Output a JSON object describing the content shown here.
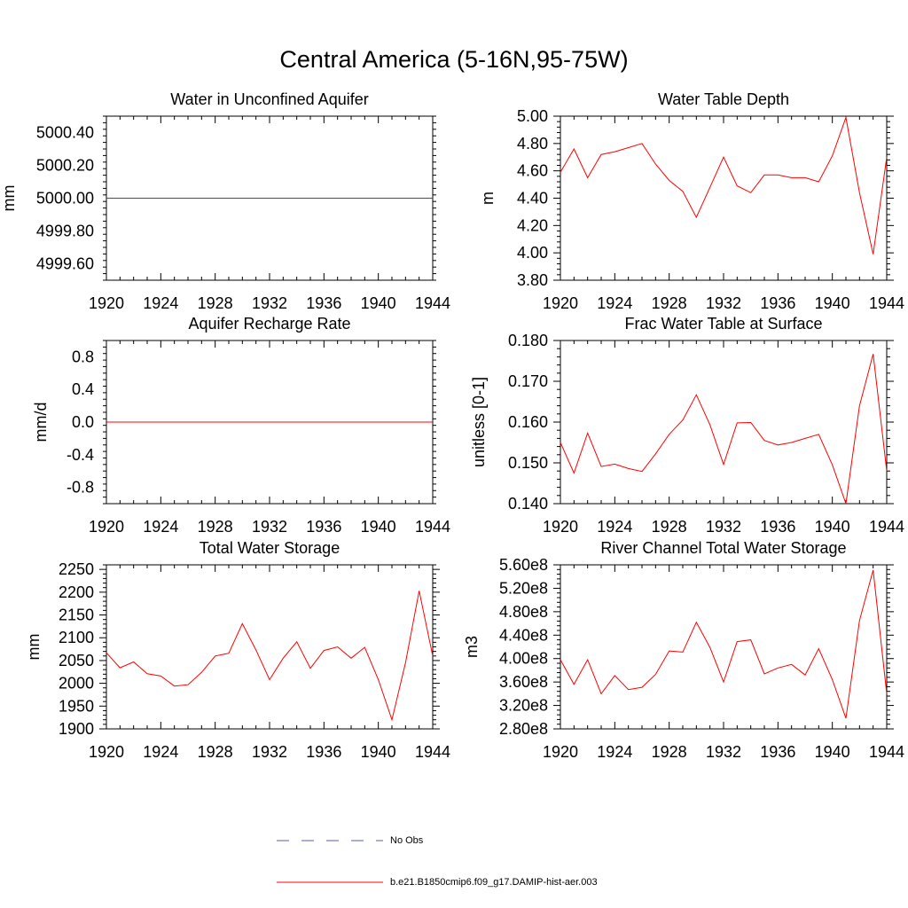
{
  "title": "Central America (5-16N,95-75W)",
  "legend": [
    {
      "label": "No Obs",
      "color": "#5b5bb5",
      "style": "dashed"
    },
    {
      "label": "b.e21.B1850cmip6.f09_g17.DAMIP-hist-aer.003",
      "color": "#ff0000",
      "style": "solid"
    }
  ],
  "chart_data": [
    {
      "type": "line",
      "title": "Water in Unconfined Aquifer",
      "ylabel": "mm",
      "xlim": [
        1920,
        1944
      ],
      "ylim": [
        4999.5,
        5000.5
      ],
      "xticks": [
        1920,
        1924,
        1928,
        1932,
        1936,
        1940,
        1944
      ],
      "yticks": [
        4999.6,
        4999.8,
        5000.0,
        5000.2,
        5000.4
      ],
      "ytick_labels": [
        "4999.60",
        "4999.80",
        "5000.00",
        "5000.20",
        "5000.40"
      ],
      "x": [
        1920,
        1944
      ],
      "values": [
        5000.0,
        5000.0
      ]
    },
    {
      "type": "line",
      "title": "Water Table Depth",
      "ylabel": "m",
      "xlim": [
        1920,
        1944
      ],
      "ylim": [
        3.8,
        5.0
      ],
      "xticks": [
        1920,
        1924,
        1928,
        1932,
        1936,
        1940,
        1944
      ],
      "yticks": [
        3.8,
        4.0,
        4.2,
        4.4,
        4.6,
        4.8,
        5.0
      ],
      "ytick_labels": [
        "3.80",
        "4.00",
        "4.20",
        "4.40",
        "4.60",
        "4.80",
        "5.00"
      ],
      "x": [
        1920,
        1921,
        1922,
        1923,
        1924,
        1925,
        1926,
        1927,
        1928,
        1929,
        1930,
        1931,
        1932,
        1933,
        1934,
        1935,
        1936,
        1937,
        1938,
        1939,
        1940,
        1941,
        1942,
        1943,
        1944
      ],
      "values": [
        4.59,
        4.76,
        4.55,
        4.72,
        4.74,
        4.77,
        4.8,
        4.65,
        4.53,
        4.45,
        4.26,
        4.48,
        4.7,
        4.49,
        4.44,
        4.57,
        4.57,
        4.55,
        4.55,
        4.52,
        4.71,
        4.99,
        4.44,
        3.99,
        4.7
      ]
    },
    {
      "type": "line",
      "title": "Aquifer Recharge Rate",
      "ylabel": "mm/d",
      "xlim": [
        1920,
        1944
      ],
      "ylim": [
        -1.0,
        1.0
      ],
      "xticks": [
        1920,
        1924,
        1928,
        1932,
        1936,
        1940,
        1944
      ],
      "yticks": [
        -0.8,
        -0.4,
        0.0,
        0.4,
        0.8
      ],
      "ytick_labels": [
        "-0.8",
        "-0.4",
        "0.0",
        "0.4",
        "0.8"
      ],
      "x": [
        1920,
        1944
      ],
      "values": [
        0.0,
        0.0
      ]
    },
    {
      "type": "line",
      "title": "Frac Water Table at Surface",
      "ylabel": "unitless [0-1]",
      "xlim": [
        1920,
        1944
      ],
      "ylim": [
        0.14,
        0.18
      ],
      "xticks": [
        1920,
        1924,
        1928,
        1932,
        1936,
        1940,
        1944
      ],
      "yticks": [
        0.14,
        0.15,
        0.16,
        0.17,
        0.18
      ],
      "ytick_labels": [
        "0.140",
        "0.150",
        "0.160",
        "0.170",
        "0.180"
      ],
      "x": [
        1920,
        1921,
        1922,
        1923,
        1924,
        1925,
        1926,
        1927,
        1928,
        1929,
        1930,
        1931,
        1932,
        1933,
        1934,
        1935,
        1936,
        1937,
        1938,
        1939,
        1940,
        1941,
        1942,
        1943,
        1944
      ],
      "values": [
        0.155,
        0.1475,
        0.1573,
        0.1491,
        0.1497,
        0.1486,
        0.1479,
        0.1522,
        0.157,
        0.1605,
        0.1667,
        0.1593,
        0.1496,
        0.1598,
        0.1599,
        0.1555,
        0.1544,
        0.155,
        0.156,
        0.157,
        0.1495,
        0.14,
        0.164,
        0.1767,
        0.148
      ]
    },
    {
      "type": "line",
      "title": "Total Water Storage",
      "ylabel": "mm",
      "xlim": [
        1920,
        1944
      ],
      "ylim": [
        1900,
        2260
      ],
      "xticks": [
        1920,
        1924,
        1928,
        1932,
        1936,
        1940,
        1944
      ],
      "yticks": [
        1900,
        1950,
        2000,
        2050,
        2100,
        2150,
        2200,
        2250
      ],
      "ytick_labels": [
        "1900",
        "1950",
        "2000",
        "2050",
        "2100",
        "2150",
        "2200",
        "2250"
      ],
      "x": [
        1920,
        1921,
        1922,
        1923,
        1924,
        1925,
        1926,
        1927,
        1928,
        1929,
        1930,
        1931,
        1932,
        1933,
        1934,
        1935,
        1936,
        1937,
        1938,
        1939,
        1940,
        1941,
        1942,
        1943,
        1944
      ],
      "values": [
        2067,
        2034,
        2047,
        2021,
        2016,
        1994,
        1997,
        2024,
        2060,
        2066,
        2131,
        2073,
        2008,
        2055,
        2091,
        2033,
        2072,
        2080,
        2055,
        2079,
        2008,
        1920,
        2045,
        2203,
        2060
      ]
    },
    {
      "type": "line",
      "title": "River Channel Total Water Storage",
      "ylabel": "m3",
      "xlim": [
        1920,
        1944
      ],
      "ylim": [
        280000000.0,
        560000000.0
      ],
      "xticks": [
        1920,
        1924,
        1928,
        1932,
        1936,
        1940,
        1944
      ],
      "yticks": [
        280000000.0,
        320000000.0,
        360000000.0,
        400000000.0,
        440000000.0,
        480000000.0,
        520000000.0,
        560000000.0
      ],
      "ytick_labels": [
        "2.80e8",
        "3.20e8",
        "3.60e8",
        "4.00e8",
        "4.40e8",
        "4.80e8",
        "5.20e8",
        "5.60e8"
      ],
      "x": [
        1920,
        1921,
        1922,
        1923,
        1924,
        1925,
        1926,
        1927,
        1928,
        1929,
        1930,
        1931,
        1932,
        1933,
        1934,
        1935,
        1936,
        1937,
        1938,
        1939,
        1940,
        1941,
        1942,
        1943,
        1944
      ],
      "values": [
        398000000.0,
        356000000.0,
        398000000.0,
        340000000.0,
        371000000.0,
        347000000.0,
        351000000.0,
        373000000.0,
        413000000.0,
        411000000.0,
        462000000.0,
        419000000.0,
        360000000.0,
        429000000.0,
        432000000.0,
        374000000.0,
        384000000.0,
        390000000.0,
        372000000.0,
        417000000.0,
        364000000.0,
        298000000.0,
        465000000.0,
        551000000.0,
        340000000.0
      ]
    }
  ]
}
